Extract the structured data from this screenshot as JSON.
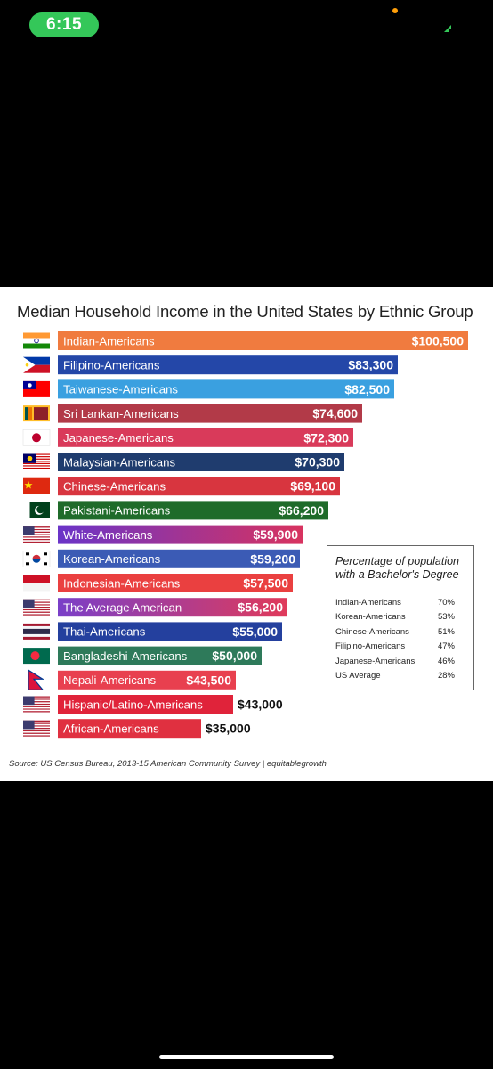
{
  "status_bar": {
    "time": "6:15"
  },
  "chart_data": {
    "type": "bar",
    "orientation": "horizontal",
    "title": "Median Household Income in the United States  by Ethnic Group",
    "categories": [
      "Indian-Americans",
      "Filipino-Americans",
      "Taiwanese-Americans",
      "Sri Lankan-Americans",
      "Japanese-Americans",
      "Malaysian-Americans",
      "Chinese-Americans",
      "Pakistani-Americans",
      "White-Americans",
      "Korean-Americans",
      "Indonesian-Americans",
      "The Average American",
      "Thai-Americans",
      "Bangladeshi-Americans",
      "Nepali-Americans",
      "Hispanic/Latino-Americans",
      "African-Americans"
    ],
    "values": [
      100500,
      83300,
      82500,
      74600,
      72300,
      70300,
      69100,
      66200,
      59900,
      59200,
      57500,
      56200,
      55000,
      50000,
      43500,
      43000,
      35000
    ],
    "value_labels": [
      "$100,500",
      "$83,300",
      "$82,500",
      "$74,600",
      "$72,300",
      "$70,300",
      "$69,100",
      "$66,200",
      "$59,900",
      "$59,200",
      "$57,500",
      "$56,200",
      "$55,000",
      "$50,000",
      "$43,500",
      "$43,000",
      "$35,000"
    ],
    "colors": [
      "#f07b3f",
      "#2447a8",
      "#3aa0e0",
      "#b23a48",
      "#d93a5a",
      "#1f3c6e",
      "#d8353f",
      "#1f6b2a",
      "#6a34c8",
      "#3b5bb5",
      "#ea4040",
      "#7a3fc8",
      "#24409e",
      "#2e7a5a",
      "#e8404f",
      "#e0233a",
      "#e03040"
    ],
    "gradient_to": [
      null,
      null,
      null,
      null,
      null,
      null,
      null,
      null,
      "#d8335f",
      null,
      null,
      "#e03a5a",
      null,
      null,
      null,
      null,
      null
    ],
    "flags": [
      "india-flag",
      "philippines-flag",
      "taiwan-flag",
      "sri-lanka-flag",
      "japan-flag",
      "malaysia-flag",
      "china-flag",
      "pakistan-flag",
      "usa-flag",
      "south-korea-flag",
      "indonesia-flag",
      "usa-flag",
      "thailand-flag",
      "bangladesh-flag",
      "nepal-flag",
      "usa-flag",
      "usa-flag"
    ],
    "source": "Source: US Census Bureau, 2013-15 American Community Survey | equitablegrowth",
    "inset": {
      "title": "Percentage of population with a Bachelor's Degree",
      "rows": [
        {
          "label": "Indian-Americans",
          "value": "70%"
        },
        {
          "label": "Korean-Americans",
          "value": "53%"
        },
        {
          "label": "Chinese-Americans",
          "value": "51%"
        },
        {
          "label": "Filipino-Americans",
          "value": "47%"
        },
        {
          "label": "Japanese-Americans",
          "value": "46%"
        },
        {
          "label": "US Average",
          "value": "28%"
        }
      ]
    }
  }
}
